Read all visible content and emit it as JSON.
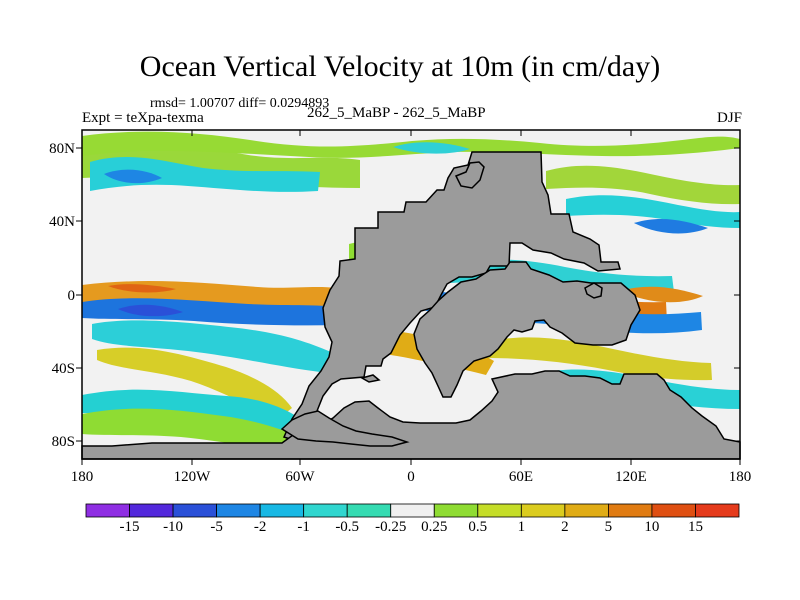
{
  "chart_data": {
    "type": "heatmap",
    "title": "Ocean Vertical Velocity at 10m (in cm/day)",
    "stats_text": "rmsd= 1.00707 diff= 0.0294893",
    "experiment_label": "Expt = teXpa-texma",
    "comparison_label": "262_5_MaBP - 262_5_MaBP",
    "season": "DJF",
    "x_ticks": [
      "180",
      "120W",
      "60W",
      "0",
      "60E",
      "120E",
      "180"
    ],
    "y_ticks": [
      "80N",
      "40N",
      "0",
      "40S",
      "80S"
    ],
    "colorbar_labels": [
      "-15",
      "-10",
      "-5",
      "-2",
      "-1",
      "-0.5",
      "-0.25",
      "0.25",
      "0.5",
      "1",
      "2",
      "5",
      "10",
      "15"
    ],
    "colorbar_colors": [
      "#8f2ee3",
      "#5328dc",
      "#2a50d8",
      "#1e86e4",
      "#18b8e4",
      "#30d6cf",
      "#35dbb2",
      "#f0f0f0",
      "#8fdc33",
      "#c5dd28",
      "#dbcc1f",
      "#e0ac16",
      "#e07b12",
      "#df4f12",
      "#e53b1c"
    ],
    "land_color": "#9b9b9b"
  }
}
